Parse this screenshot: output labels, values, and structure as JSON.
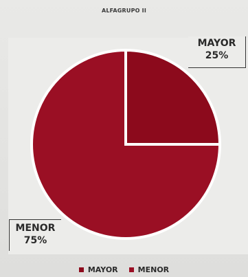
{
  "chart_data": {
    "type": "pie",
    "title": "ALFAGRUPO II",
    "slices": [
      {
        "label": "MAYOR",
        "value": 25,
        "value_label": "25%",
        "color": "#8c0a1c"
      },
      {
        "label": "MENOR",
        "value": 75,
        "value_label": "75%",
        "color": "#9a0f24"
      }
    ],
    "legend_position": "bottom",
    "start_angle_deg": 0,
    "direction": "clockwise"
  }
}
